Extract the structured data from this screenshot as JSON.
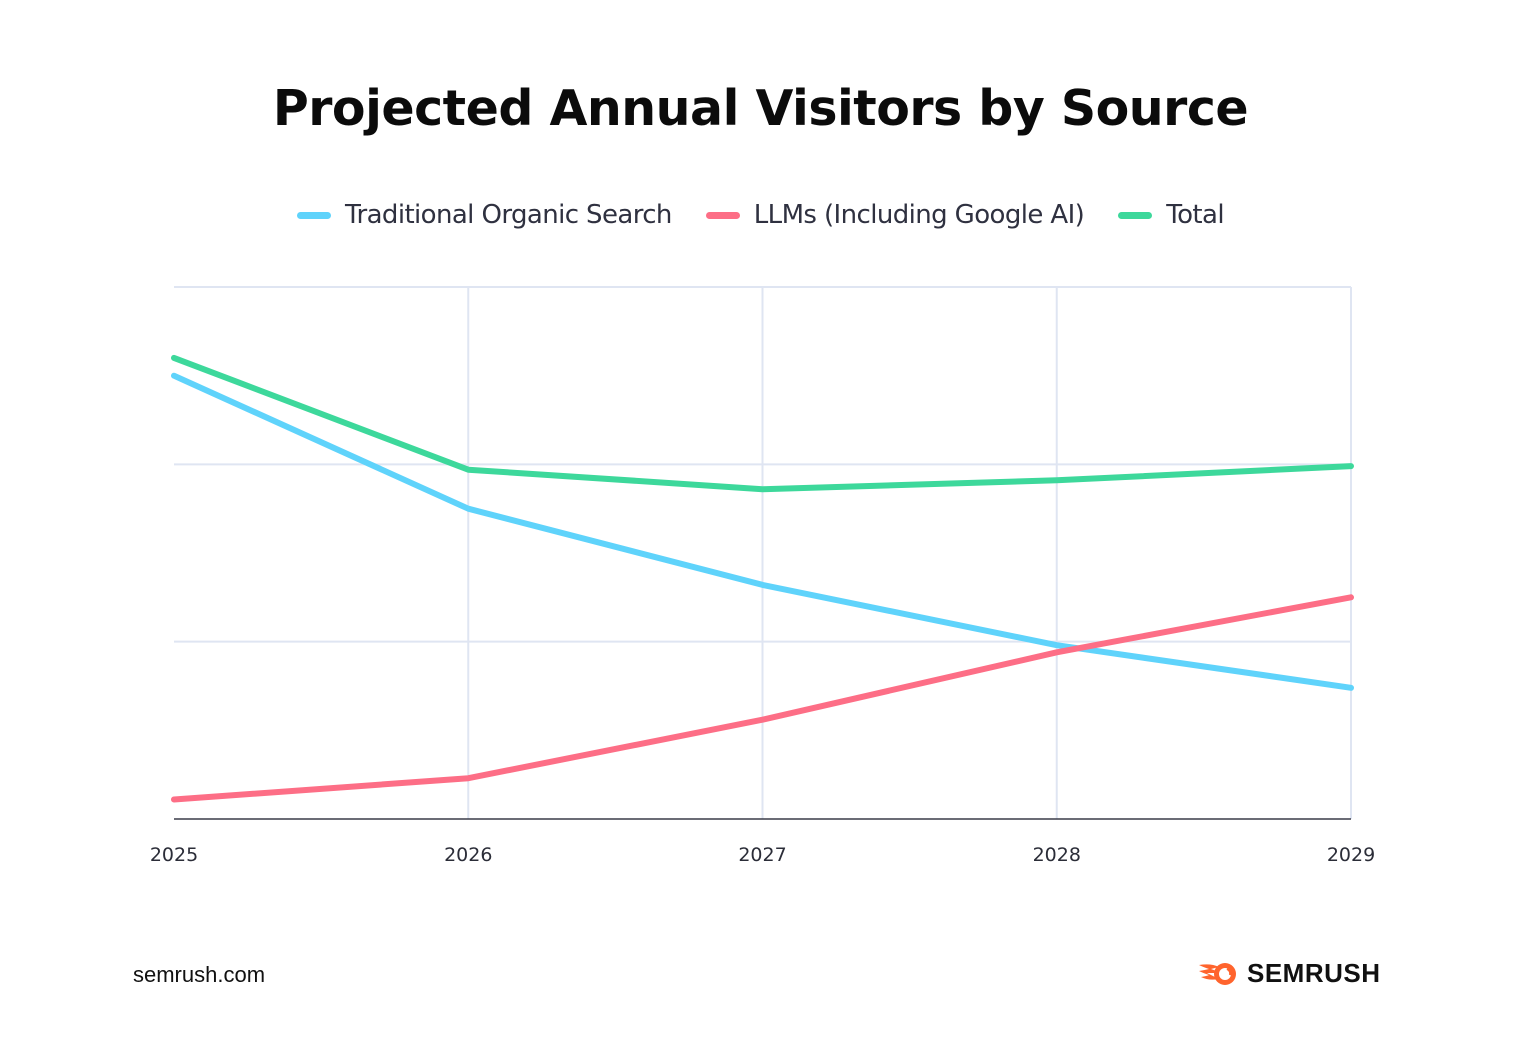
{
  "footer": {
    "url": "semrush.com",
    "brand": "SEMRUSH",
    "brand_icon": "semrush-fireball-icon",
    "brand_color": "#ff642d"
  },
  "chart_data": {
    "type": "line",
    "title": "Projected Annual Visitors by Source",
    "xlabel": "",
    "ylabel": "",
    "x": [
      "2025",
      "2026",
      "2027",
      "2028",
      "2029"
    ],
    "ylim": [
      0,
      3
    ],
    "y_units": "relative (no y-axis labels shown; units = gridline intervals)",
    "yticks_gridlines": [
      1,
      2,
      3
    ],
    "y_tick_labels_visible": false,
    "grid": true,
    "legend_position": "top-center",
    "series": [
      {
        "name": "Traditional Organic Search",
        "color": "#5fd3fb",
        "values": [
          2.5,
          1.75,
          1.32,
          0.98,
          0.74
        ]
      },
      {
        "name": "LLMs (Including Google AI)",
        "color": "#fd6e86",
        "values": [
          0.11,
          0.23,
          0.56,
          0.94,
          1.25
        ]
      },
      {
        "name": "Total",
        "color": "#3dd89b",
        "values": [
          2.6,
          1.97,
          1.86,
          1.91,
          1.99
        ]
      }
    ]
  }
}
